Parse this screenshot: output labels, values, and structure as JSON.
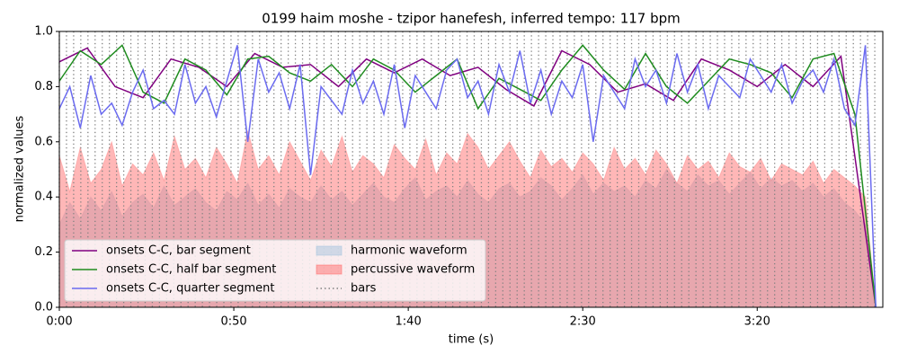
{
  "chart_data": {
    "type": "line",
    "title": "0199 haim moshe - tzipor hanefesh, inferred tempo: 117 bpm",
    "x_label": "time (s)",
    "y_label": "normalized values",
    "xlim": [
      0,
      236
    ],
    "ylim": [
      0,
      1
    ],
    "xticks": [
      {
        "value": 0,
        "label": "0:00"
      },
      {
        "value": 50,
        "label": "0:50"
      },
      {
        "value": 100,
        "label": "1:40"
      },
      {
        "value": 150,
        "label": "2:30"
      },
      {
        "value": 200,
        "label": "3:20"
      }
    ],
    "yticks": [
      {
        "value": 0,
        "label": "0.0"
      },
      {
        "value": 0.2,
        "label": "0.2"
      },
      {
        "value": 0.4,
        "label": "0.4"
      },
      {
        "value": 0.6,
        "label": "0.6"
      },
      {
        "value": 0.8,
        "label": "0.8"
      },
      {
        "value": 1,
        "label": "1.0"
      }
    ],
    "legend": "lower left",
    "x": [
      0,
      3,
      6,
      9,
      12,
      15,
      18,
      21,
      24,
      27,
      30,
      33,
      36,
      39,
      42,
      45,
      48,
      51,
      54,
      57,
      60,
      63,
      66,
      69,
      72,
      75,
      78,
      81,
      84,
      87,
      90,
      93,
      96,
      99,
      102,
      105,
      108,
      111,
      114,
      117,
      120,
      123,
      126,
      129,
      132,
      135,
      138,
      141,
      144,
      147,
      150,
      153,
      156,
      159,
      162,
      165,
      168,
      171,
      174,
      177,
      180,
      183,
      186,
      189,
      192,
      195,
      198,
      201,
      204,
      207,
      210,
      213,
      216,
      219,
      222,
      225,
      228,
      231,
      234
    ],
    "series": [
      {
        "name": "onsets C-C, bar segment",
        "type": "line",
        "color": "#800080",
        "x": [
          0,
          8,
          16,
          24,
          32,
          40,
          48,
          56,
          64,
          72,
          80,
          88,
          96,
          104,
          112,
          120,
          128,
          136,
          144,
          152,
          160,
          168,
          176,
          184,
          192,
          200,
          208,
          216,
          224,
          234
        ],
        "values": [
          0.89,
          0.94,
          0.8,
          0.76,
          0.9,
          0.87,
          0.8,
          0.92,
          0.87,
          0.88,
          0.8,
          0.9,
          0.85,
          0.9,
          0.84,
          0.87,
          0.79,
          0.73,
          0.93,
          0.88,
          0.78,
          0.81,
          0.75,
          0.9,
          0.86,
          0.8,
          0.88,
          0.8,
          0.91,
          0.0
        ]
      },
      {
        "name": "onsets C-C, half bar segment",
        "type": "line",
        "color": "#1f8c1f",
        "x": [
          0,
          6,
          12,
          18,
          24,
          30,
          36,
          42,
          48,
          54,
          60,
          66,
          72,
          78,
          84,
          90,
          96,
          102,
          108,
          114,
          120,
          126,
          132,
          138,
          144,
          150,
          156,
          162,
          168,
          174,
          180,
          186,
          192,
          198,
          204,
          210,
          216,
          222,
          228,
          234
        ],
        "values": [
          0.82,
          0.93,
          0.88,
          0.95,
          0.78,
          0.74,
          0.9,
          0.86,
          0.77,
          0.9,
          0.91,
          0.85,
          0.82,
          0.88,
          0.8,
          0.9,
          0.86,
          0.78,
          0.84,
          0.9,
          0.72,
          0.83,
          0.79,
          0.75,
          0.86,
          0.95,
          0.86,
          0.79,
          0.92,
          0.8,
          0.74,
          0.82,
          0.9,
          0.88,
          0.85,
          0.76,
          0.9,
          0.92,
          0.7,
          0.0
        ]
      },
      {
        "name": "onsets C-C, quarter segment",
        "type": "line",
        "color": "#6b6bf0",
        "values": [
          0.72,
          0.8,
          0.65,
          0.84,
          0.7,
          0.74,
          0.66,
          0.78,
          0.86,
          0.72,
          0.75,
          0.7,
          0.88,
          0.74,
          0.8,
          0.69,
          0.82,
          0.95,
          0.6,
          0.9,
          0.78,
          0.85,
          0.72,
          0.88,
          0.48,
          0.8,
          0.75,
          0.7,
          0.86,
          0.74,
          0.82,
          0.7,
          0.88,
          0.65,
          0.84,
          0.78,
          0.72,
          0.86,
          0.9,
          0.76,
          0.82,
          0.7,
          0.88,
          0.78,
          0.93,
          0.74,
          0.86,
          0.7,
          0.82,
          0.76,
          0.88,
          0.6,
          0.84,
          0.78,
          0.72,
          0.9,
          0.8,
          0.86,
          0.74,
          0.92,
          0.78,
          0.88,
          0.72,
          0.84,
          0.8,
          0.76,
          0.9,
          0.84,
          0.78,
          0.88,
          0.74,
          0.82,
          0.86,
          0.78,
          0.9,
          0.72,
          0.66,
          0.95,
          0.0
        ]
      },
      {
        "name": "harmonic waveform",
        "type": "area",
        "color": "#9ebfdc",
        "values": [
          0.3,
          0.38,
          0.32,
          0.4,
          0.35,
          0.42,
          0.33,
          0.38,
          0.41,
          0.36,
          0.44,
          0.37,
          0.4,
          0.43,
          0.38,
          0.35,
          0.42,
          0.39,
          0.45,
          0.37,
          0.41,
          0.36,
          0.43,
          0.4,
          0.38,
          0.44,
          0.39,
          0.42,
          0.37,
          0.41,
          0.45,
          0.4,
          0.38,
          0.43,
          0.47,
          0.39,
          0.42,
          0.44,
          0.4,
          0.46,
          0.41,
          0.38,
          0.43,
          0.45,
          0.4,
          0.42,
          0.47,
          0.44,
          0.39,
          0.43,
          0.48,
          0.41,
          0.45,
          0.42,
          0.44,
          0.4,
          0.46,
          0.43,
          0.5,
          0.45,
          0.42,
          0.48,
          0.44,
          0.46,
          0.41,
          0.45,
          0.49,
          0.43,
          0.47,
          0.44,
          0.46,
          0.42,
          0.45,
          0.4,
          0.43,
          0.38,
          0.35,
          0.3,
          0.0
        ]
      },
      {
        "name": "percussive waveform",
        "type": "area",
        "color": "#ff6060",
        "values": [
          0.55,
          0.42,
          0.58,
          0.45,
          0.5,
          0.6,
          0.44,
          0.52,
          0.48,
          0.56,
          0.46,
          0.62,
          0.5,
          0.54,
          0.47,
          0.58,
          0.52,
          0.45,
          0.64,
          0.5,
          0.55,
          0.48,
          0.6,
          0.53,
          0.46,
          0.57,
          0.51,
          0.62,
          0.49,
          0.55,
          0.52,
          0.47,
          0.59,
          0.54,
          0.5,
          0.61,
          0.48,
          0.56,
          0.52,
          0.63,
          0.58,
          0.5,
          0.55,
          0.6,
          0.53,
          0.47,
          0.57,
          0.51,
          0.54,
          0.49,
          0.56,
          0.52,
          0.46,
          0.58,
          0.5,
          0.54,
          0.48,
          0.57,
          0.52,
          0.45,
          0.55,
          0.5,
          0.53,
          0.47,
          0.56,
          0.51,
          0.49,
          0.54,
          0.46,
          0.52,
          0.5,
          0.48,
          0.53,
          0.45,
          0.5,
          0.47,
          0.44,
          0.4,
          0.0
        ]
      },
      {
        "name": "bars",
        "type": "vlines",
        "color": "#808080",
        "x": [
          0,
          2.05,
          4.1,
          6.15,
          8.2,
          10.25,
          12.3,
          14.35,
          16.4,
          18.45,
          20.5,
          22.55,
          24.6,
          26.65,
          28.7,
          30.75,
          32.8,
          34.85,
          36.9,
          38.95,
          41,
          43.05,
          45.1,
          47.15,
          49.2,
          51.25,
          53.3,
          55.35,
          57.4,
          59.45,
          61.5,
          63.55,
          65.6,
          67.65,
          69.7,
          71.75,
          73.8,
          75.85,
          77.9,
          79.95,
          82,
          84.05,
          86.1,
          88.15,
          90.2,
          92.25,
          94.3,
          96.35,
          98.4,
          100.45,
          102.5,
          104.55,
          106.6,
          108.65,
          110.7,
          112.75,
          114.8,
          116.85,
          118.9,
          120.95,
          123,
          125.05,
          127.1,
          129.15,
          131.2,
          133.25,
          135.3,
          137.35,
          139.4,
          141.45,
          143.5,
          145.55,
          147.6,
          149.65,
          151.7,
          153.75,
          155.8,
          157.85,
          159.9,
          161.95,
          164,
          166.05,
          168.1,
          170.15,
          172.2,
          174.25,
          176.3,
          178.35,
          180.4,
          182.45,
          184.5,
          186.55,
          188.6,
          190.65,
          192.7,
          194.75,
          196.8,
          198.85,
          200.9,
          202.95,
          205,
          207.05,
          209.1,
          211.15,
          213.2,
          215.25,
          217.3,
          219.35,
          221.4,
          223.45,
          225.5,
          227.55,
          229.6,
          231.65,
          233.7
        ]
      }
    ]
  }
}
